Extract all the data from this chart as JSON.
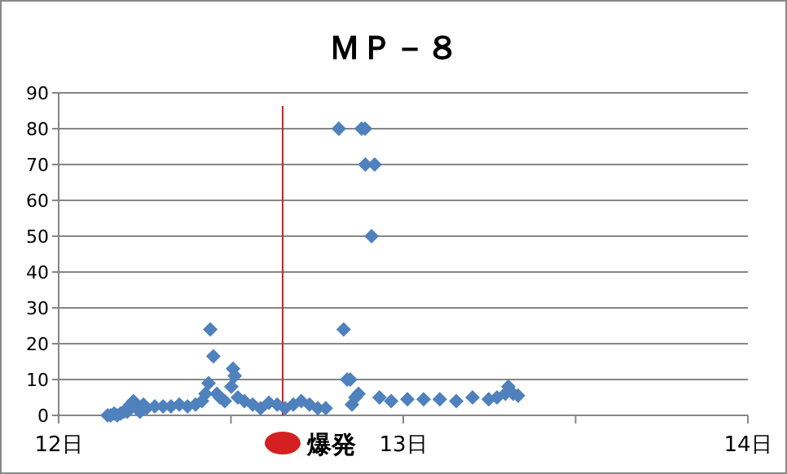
{
  "chart_data": {
    "type": "scatter",
    "title": "ＭＰ－８",
    "xlim": [
      12,
      14
    ],
    "xticks": [
      {
        "value": 12,
        "label": "12日"
      },
      {
        "value": 12.5,
        "label": null
      },
      {
        "value": 13,
        "label": "13日"
      },
      {
        "value": 13.5,
        "label": null
      },
      {
        "value": 14,
        "label": "14日"
      }
    ],
    "ylim": [
      0,
      90
    ],
    "yticks": [
      0,
      10,
      20,
      30,
      40,
      50,
      60,
      70,
      80,
      90
    ],
    "grid": "y",
    "marker": "diamond",
    "ref_lines": [
      {
        "axis": "x",
        "value": 12.65,
        "label": "爆発",
        "color": "#d42020"
      }
    ],
    "series": [
      {
        "color": "#4f81bd",
        "x": [
          12.142,
          12.151,
          12.161,
          12.17,
          12.18,
          12.189,
          12.199,
          12.208,
          12.217,
          12.227,
          12.236,
          12.246,
          12.255,
          12.279,
          12.303,
          12.326,
          12.35,
          12.374,
          12.397,
          12.416,
          12.426,
          12.435,
          12.44,
          12.449,
          12.459,
          12.468,
          12.482,
          12.501,
          12.506,
          12.511,
          12.52,
          12.539,
          12.563,
          12.586,
          12.61,
          12.634,
          12.657,
          12.681,
          12.704,
          12.728,
          12.752,
          12.775,
          12.813,
          12.827,
          12.837,
          12.846,
          12.851,
          12.861,
          12.87,
          12.879,
          12.889,
          12.89,
          12.908,
          12.917,
          12.931,
          12.965,
          13.012,
          13.059,
          13.106,
          13.154,
          13.201,
          13.248,
          13.272,
          13.296,
          13.305,
          13.319,
          13.333
        ],
        "values": [
          0,
          0,
          0.5,
          0,
          0.5,
          1,
          1,
          3,
          4,
          2,
          1,
          3,
          2,
          2.5,
          2.5,
          2.5,
          3,
          2.5,
          3,
          4,
          6,
          9,
          24,
          16.5,
          6,
          5,
          4,
          8,
          13,
          11,
          5,
          4,
          3,
          2,
          3.5,
          3,
          2,
          3,
          4,
          3,
          2,
          2,
          80,
          24,
          10,
          10,
          3,
          5,
          6,
          80,
          80,
          70,
          50,
          70,
          5,
          4,
          4.5,
          4.5,
          4.5,
          4,
          5,
          4.5,
          5,
          6,
          8,
          6,
          5.5
        ]
      }
    ]
  }
}
